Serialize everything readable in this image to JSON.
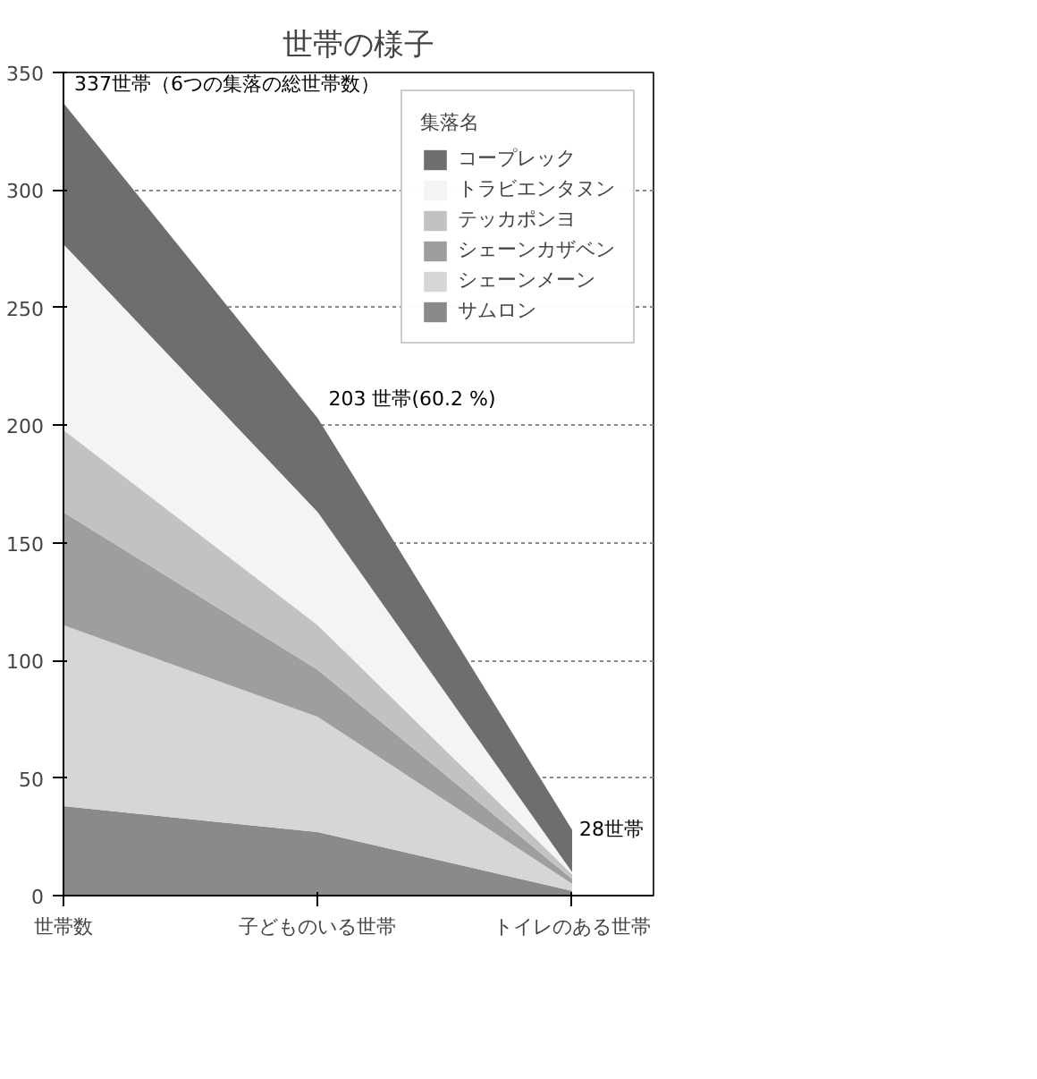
{
  "chart_data": {
    "type": "area",
    "stacked": true,
    "title": "世帯の様子",
    "legend_title": "集落名",
    "legend": "top right",
    "categories": [
      "世帯数",
      "子どものいる世帯",
      "トイレのある世帯"
    ],
    "series": [
      {
        "name": "サムロン",
        "color": "#8a8a8a",
        "values": [
          38,
          27,
          2
        ]
      },
      {
        "name": "シェーンメーン",
        "color": "#d6d6d6",
        "values": [
          77,
          49,
          3
        ]
      },
      {
        "name": "シェーンカザベン",
        "color": "#9e9e9e",
        "values": [
          48,
          20,
          2
        ]
      },
      {
        "name": "テッカポンヨ",
        "color": "#c2c2c2",
        "values": [
          35,
          19,
          2
        ]
      },
      {
        "name": "トラビエンタヌン",
        "color": "#f4f4f4",
        "values": [
          79,
          48,
          1
        ]
      },
      {
        "name": "コープレック",
        "color": "#6e6e6e",
        "values": [
          60,
          40,
          18
        ]
      }
    ],
    "ylim": [
      0,
      350
    ],
    "yticks": [
      0,
      50,
      100,
      150,
      200,
      250,
      300,
      350
    ],
    "grid": "y",
    "annotations": [
      {
        "text": "337世帯（6つの集落の総世帯数）",
        "x": "世帯数",
        "y": 337
      },
      {
        "text": "203 世帯(60.2 %)",
        "x": "子どものいる世帯",
        "y": 203
      },
      {
        "text": "28世帯",
        "x": "トイレのある世帯",
        "y": 28
      }
    ]
  }
}
